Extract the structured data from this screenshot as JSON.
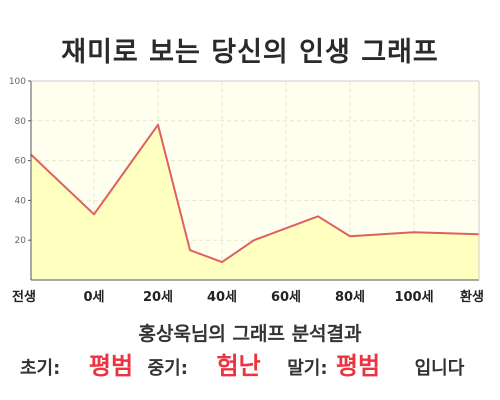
{
  "chart_data": {
    "type": "area",
    "title": "재미로 보는 당신의 인생 그래프",
    "xlabel": "",
    "ylabel": "",
    "ylim": [
      0,
      100
    ],
    "yticks": [
      "100",
      "80",
      "60",
      "40",
      "20"
    ],
    "xticks": [
      "전생",
      "0세",
      "20세",
      "40세",
      "60세",
      "80세",
      "100세",
      "환생"
    ],
    "grid": true,
    "fill_color": "#ffffc0",
    "line_color": "#e06060",
    "points": [
      {
        "x": "전생",
        "y": 63
      },
      {
        "x": "0세",
        "y": 33
      },
      {
        "x": "20세",
        "y": 78
      },
      {
        "x": "30세",
        "y": 15
      },
      {
        "x": "40세",
        "y": 9
      },
      {
        "x": "50세",
        "y": 20
      },
      {
        "x": "70세",
        "y": 32
      },
      {
        "x": "80세",
        "y": 22
      },
      {
        "x": "100세",
        "y": 24
      },
      {
        "x": "환생",
        "y": 23
      }
    ]
  },
  "result": {
    "title": "홍상욱님의 그래프 분석결과",
    "early_label": "초기:",
    "early_value": "평범",
    "middle_label": "중기:",
    "middle_value": "험난",
    "late_label": "말기:",
    "late_value": "평범",
    "suffix": "입니다"
  }
}
